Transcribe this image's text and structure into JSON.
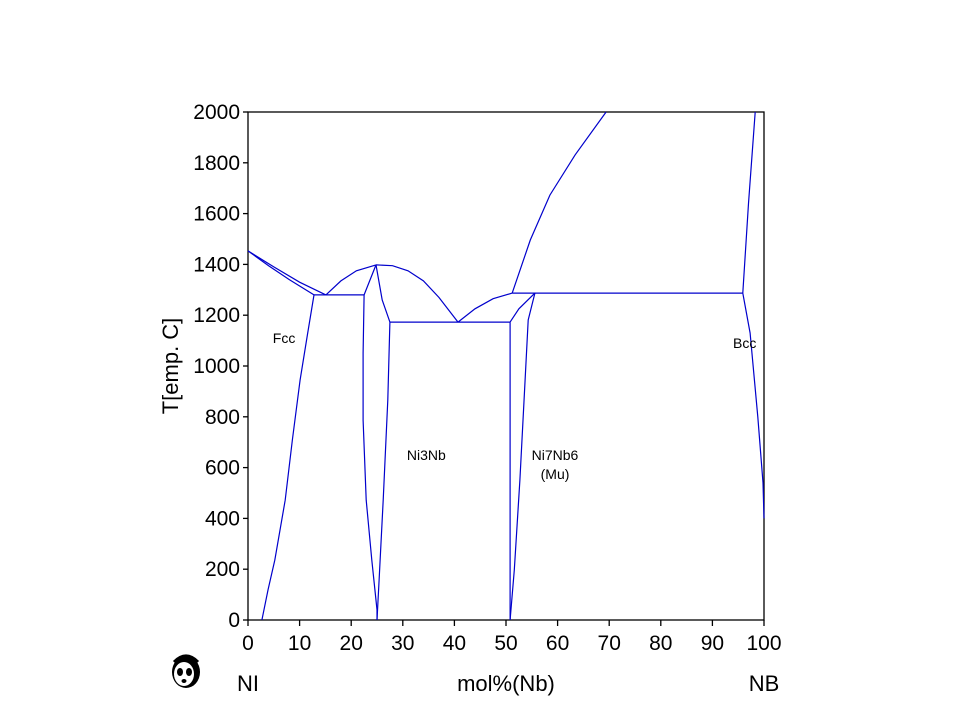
{
  "chart_data": {
    "type": "line",
    "title": "",
    "xlabel": "mol%(Nb)",
    "ylabel": "T[emp. C]",
    "x_left_label": "NI",
    "x_right_label": "NB",
    "xlim": [
      0,
      100
    ],
    "ylim": [
      0,
      2000
    ],
    "xticks": [
      0,
      10,
      20,
      30,
      40,
      50,
      60,
      70,
      80,
      90,
      100
    ],
    "yticks": [
      0,
      200,
      400,
      600,
      800,
      1000,
      1200,
      1400,
      1600,
      1800,
      2000
    ],
    "grid": false,
    "line_color": "#0000CC",
    "regions": [
      {
        "name": "fcc",
        "label": "Fcc",
        "x": 4.8,
        "T": 1090
      },
      {
        "name": "ni3nb",
        "label": "Ni3Nb",
        "x": 30.8,
        "T": 630
      },
      {
        "name": "mu-1",
        "label": "Ni7Nb6",
        "x": 33.1,
        "T": 630,
        "center_x": 59.5
      },
      {
        "name": "mu-2",
        "label": "(Mu)",
        "x": 59.5,
        "T": 555
      },
      {
        "name": "bcc",
        "label": "Bcc",
        "x": 94,
        "T": 1070
      }
    ],
    "series": [
      {
        "name": "fcc-liquidus",
        "points": [
          [
            0,
            1453
          ],
          [
            5,
            1390
          ],
          [
            10,
            1330
          ],
          [
            15.1,
            1280
          ]
        ]
      },
      {
        "name": "fcc-solidus",
        "points": [
          [
            0,
            1453
          ],
          [
            4,
            1395
          ],
          [
            8,
            1340
          ],
          [
            12.8,
            1280
          ]
        ]
      },
      {
        "name": "fcc-solvus",
        "points": [
          [
            12.8,
            1280
          ],
          [
            11.5,
            1120
          ],
          [
            10.1,
            945
          ],
          [
            8.6,
            710
          ],
          [
            7.2,
            472
          ],
          [
            5.2,
            236
          ],
          [
            3.9,
            120
          ],
          [
            2.7,
            0
          ]
        ]
      },
      {
        "name": "eutectic-1280",
        "points": [
          [
            12.8,
            1280
          ],
          [
            22.5,
            1280
          ]
        ]
      },
      {
        "name": "ni3nb-liquidus-left",
        "points": [
          [
            15.1,
            1280
          ],
          [
            18,
            1335
          ],
          [
            21,
            1375
          ],
          [
            24.8,
            1398
          ]
        ]
      },
      {
        "name": "ni3nb-liquidus-right",
        "points": [
          [
            24.8,
            1398
          ],
          [
            28,
            1395
          ],
          [
            31,
            1375
          ],
          [
            34,
            1335
          ],
          [
            37,
            1270
          ],
          [
            40.7,
            1173
          ]
        ]
      },
      {
        "name": "ni3nb-left-boundary",
        "points": [
          [
            24.8,
            1398
          ],
          [
            22.5,
            1280
          ],
          [
            22.3,
            1050
          ],
          [
            22.3,
            787
          ],
          [
            22.9,
            472
          ],
          [
            24,
            236
          ],
          [
            25,
            40
          ],
          [
            25,
            0
          ]
        ]
      },
      {
        "name": "ni3nb-right-boundary",
        "points": [
          [
            24.8,
            1398
          ],
          [
            26,
            1260
          ],
          [
            27.5,
            1173
          ],
          [
            27.1,
            866
          ],
          [
            26.2,
            472
          ],
          [
            25.4,
            157
          ],
          [
            25,
            0
          ]
        ]
      },
      {
        "name": "eutectic-1173",
        "points": [
          [
            27.5,
            1173
          ],
          [
            50.8,
            1173
          ]
        ]
      },
      {
        "name": "mu-liquidus-left",
        "points": [
          [
            40.7,
            1173
          ],
          [
            44,
            1225
          ],
          [
            47.5,
            1265
          ],
          [
            51.2,
            1287
          ]
        ]
      },
      {
        "name": "mu-left-boundary",
        "points": [
          [
            50.8,
            1173
          ],
          [
            50.8,
            0
          ]
        ]
      },
      {
        "name": "mu-upper-boundary",
        "points": [
          [
            50.8,
            1173
          ],
          [
            52.5,
            1225
          ],
          [
            55.6,
            1287
          ]
        ]
      },
      {
        "name": "mu-right-boundary",
        "points": [
          [
            55.6,
            1287
          ],
          [
            54.3,
            1181
          ],
          [
            53.7,
            945
          ],
          [
            52.7,
            551
          ],
          [
            51.6,
            197
          ],
          [
            50.8,
            0
          ]
        ]
      },
      {
        "name": "peritectic-1287",
        "points": [
          [
            51.2,
            1287
          ],
          [
            95.9,
            1287
          ]
        ]
      },
      {
        "name": "bcc-liquidus",
        "points": [
          [
            51.2,
            1287
          ],
          [
            54.7,
            1496
          ],
          [
            58.5,
            1673
          ],
          [
            63.4,
            1831
          ],
          [
            69.4,
            2000
          ]
        ]
      },
      {
        "name": "bcc-solidus",
        "points": [
          [
            95.9,
            1287
          ],
          [
            97,
            1640
          ],
          [
            98.3,
            2000
          ]
        ]
      },
      {
        "name": "bcc-solvus",
        "points": [
          [
            95.9,
            1287
          ],
          [
            97.3,
            1130
          ],
          [
            98.8,
            800
          ],
          [
            99.8,
            540
          ],
          [
            100,
            400
          ]
        ]
      }
    ]
  }
}
